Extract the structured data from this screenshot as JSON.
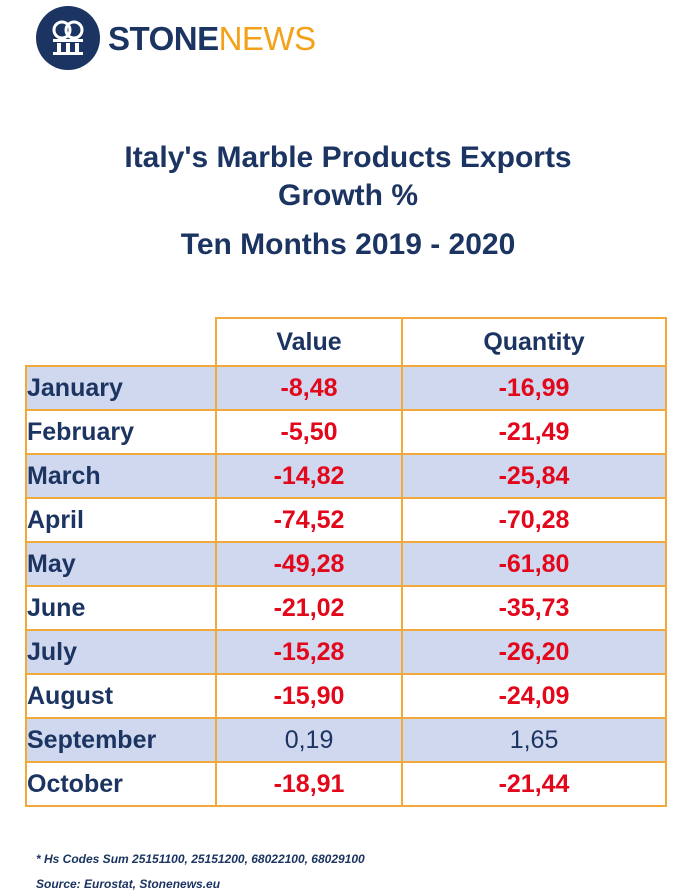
{
  "logo": {
    "stone": "STONE",
    "news": "NEWS",
    "brand_color": "#1c3461",
    "accent_color": "#f4a11a"
  },
  "chart_data": {
    "type": "table",
    "title": "Italy's Marble Products Exports",
    "title_line2": "Growth %",
    "subtitle": "Ten Months 2019 - 2020",
    "columns": [
      "Value",
      "Quantity"
    ],
    "rows": [
      {
        "month": "January",
        "value": "-8,48",
        "quantity": "-16,99"
      },
      {
        "month": "February",
        "value": "-5,50",
        "quantity": "-21,49"
      },
      {
        "month": "March",
        "value": "-14,82",
        "quantity": "-25,84"
      },
      {
        "month": "April",
        "value": "-74,52",
        "quantity": "-70,28"
      },
      {
        "month": "May",
        "value": "-49,28",
        "quantity": "-61,80"
      },
      {
        "month": "June",
        "value": "-21,02",
        "quantity": "-35,73"
      },
      {
        "month": "July",
        "value": "-15,28",
        "quantity": "-26,20"
      },
      {
        "month": "August",
        "value": "-15,90",
        "quantity": "-24,09"
      },
      {
        "month": "September",
        "value": "0,19",
        "quantity": "1,65"
      },
      {
        "month": "October",
        "value": "-18,91",
        "quantity": "-21,44"
      }
    ],
    "negative_color": "#e2071b",
    "text_color": "#1c3461",
    "border_color": "#f0a93a",
    "shade_color": "#cfd8ee"
  },
  "notes": {
    "hs_codes": "* Hs Codes Sum 25151100, 25151200, 68022100, 68029100",
    "source": "Source: Eurostat, Stonenews.eu"
  }
}
